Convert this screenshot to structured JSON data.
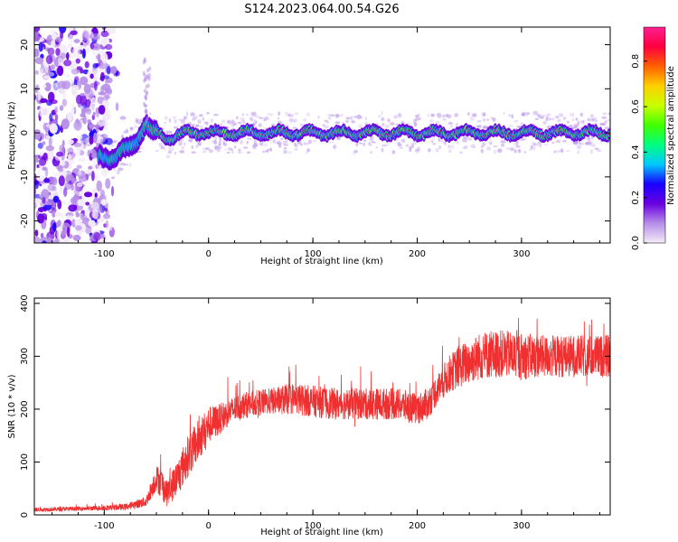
{
  "title": "S124.2023.064.00.54.G26",
  "chart_data": [
    {
      "type": "heatmap",
      "xlabel": "Height of straight line (km)",
      "ylabel": "Frequency (Hz)",
      "xlim": [
        -167,
        385
      ],
      "ylim": [
        -25,
        24
      ],
      "x_ticks": [
        -100,
        0,
        100,
        200,
        300
      ],
      "y_ticks": [
        -20,
        -10,
        0,
        10,
        20
      ],
      "colorbar": {
        "label": "Normalized spectral amplitude",
        "range": [
          0,
          0.95
        ],
        "ticks": [
          "0.0",
          "0.2",
          "0.4",
          "0.6",
          "0.8"
        ],
        "tick_values": [
          0.0,
          0.2,
          0.4,
          0.6,
          0.8
        ],
        "colormap": [
          "#f4ecf8",
          "#b68ee8",
          "#6a00e0",
          "#1a00ff",
          "#00c8ff",
          "#00ff80",
          "#40ff00",
          "#c8ff00",
          "#ffd000",
          "#ff6000",
          "#ff0040",
          "#ff2090"
        ]
      },
      "ridge": {
        "x": [
          -100,
          -90,
          -80,
          -70,
          -65,
          -60,
          -55,
          -50,
          -40,
          -35,
          -20,
          0,
          20,
          50,
          80,
          100,
          150,
          200,
          240,
          260,
          300,
          350,
          385
        ],
        "frequency": [
          -5,
          -6,
          -4,
          -2,
          0,
          2,
          0,
          0,
          -1,
          -1,
          0,
          0,
          0,
          0,
          0,
          0,
          0,
          0,
          0,
          0,
          0,
          0,
          0
        ]
      }
    },
    {
      "type": "line",
      "xlabel": "Height of straight line (km)",
      "ylabel": "SNR (10 * v/v)",
      "xlim": [
        -167,
        385
      ],
      "ylim": [
        0,
        410
      ],
      "x_ticks": [
        -100,
        0,
        100,
        200,
        300
      ],
      "y_ticks": [
        0,
        100,
        200,
        300,
        400
      ],
      "series_color": "#f03030",
      "envelope": {
        "x": [
          -167,
          -120,
          -80,
          -60,
          -50,
          -45,
          -40,
          -30,
          -20,
          -10,
          0,
          10,
          20,
          30,
          40,
          60,
          80,
          100,
          120,
          150,
          180,
          200,
          210,
          220,
          230,
          240,
          260,
          280,
          300,
          320,
          350,
          385
        ],
        "snr": [
          10,
          12,
          15,
          25,
          70,
          60,
          40,
          70,
          110,
          140,
          170,
          180,
          195,
          205,
          210,
          215,
          220,
          215,
          210,
          210,
          210,
          200,
          210,
          240,
          265,
          280,
          300,
          305,
          300,
          300,
          300,
          300
        ],
        "spread": [
          4,
          4,
          6,
          10,
          25,
          30,
          25,
          35,
          40,
          40,
          35,
          30,
          25,
          25,
          25,
          25,
          30,
          30,
          30,
          30,
          30,
          30,
          30,
          30,
          35,
          40,
          45,
          45,
          45,
          40,
          40,
          40
        ]
      }
    }
  ]
}
